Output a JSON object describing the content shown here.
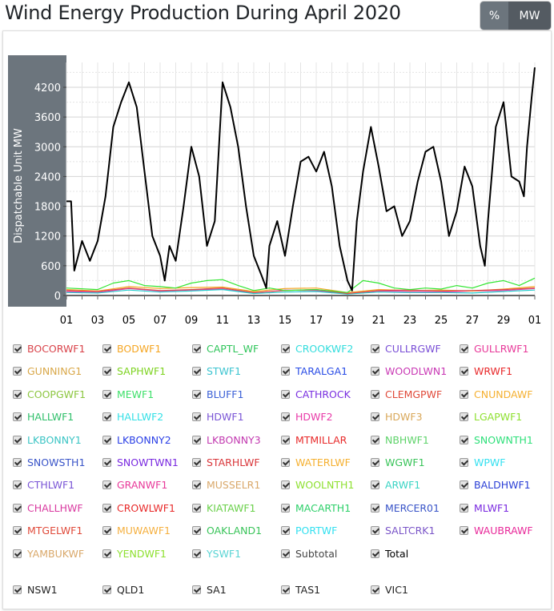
{
  "title": "Wind Energy Production During April 2020",
  "unit_toggle": {
    "options": [
      "%",
      "MW"
    ],
    "selected": "MW"
  },
  "chart_data": {
    "type": "line",
    "ylabel": "Dispatchable Unit MW",
    "xlabel": "",
    "ylim": [
      0,
      4700
    ],
    "yticks": [
      0,
      600,
      1200,
      1800,
      2400,
      3000,
      3600,
      4200
    ],
    "xticks": [
      "01",
      "03",
      "05",
      "07",
      "09",
      "11",
      "13",
      "15",
      "17",
      "19",
      "21",
      "23",
      "25",
      "27",
      "29",
      "01"
    ],
    "xlim_days": [
      1,
      31
    ],
    "grid": true,
    "series": [
      {
        "name": "Total",
        "color": "#000000",
        "x": [
          1,
          1.3,
          1.5,
          2,
          2.5,
          3,
          3.5,
          4,
          4.5,
          5,
          5.5,
          6,
          6.5,
          7,
          7.3,
          7.6,
          8,
          8.5,
          9,
          9.5,
          10,
          10.5,
          11,
          11.5,
          12,
          12.5,
          13,
          13.5,
          13.8,
          14,
          14.5,
          15,
          15.5,
          16,
          16.5,
          17,
          17.5,
          18,
          18.5,
          19,
          19.3,
          19.6,
          20,
          20.5,
          21,
          21.5,
          22,
          22.5,
          23,
          23.5,
          24,
          24.5,
          25,
          25.5,
          26,
          26.5,
          27,
          27.5,
          27.8,
          28,
          28.5,
          29,
          29.5,
          30,
          30.3,
          30.5,
          30.8,
          31
        ],
        "y": [
          1900,
          1900,
          500,
          1100,
          700,
          1100,
          2000,
          3400,
          3900,
          4300,
          3800,
          2500,
          1200,
          800,
          300,
          1000,
          700,
          1800,
          3000,
          2400,
          1000,
          1500,
          4300,
          3800,
          3000,
          1800,
          800,
          400,
          150,
          1000,
          1500,
          800,
          1800,
          2700,
          2800,
          2500,
          2900,
          2200,
          1000,
          300,
          100,
          1500,
          2500,
          3400,
          2600,
          1700,
          1800,
          1200,
          1500,
          2300,
          2900,
          3000,
          2300,
          1200,
          1700,
          2600,
          2200,
          1000,
          600,
          1500,
          3400,
          3900,
          2400,
          2300,
          2000,
          3000,
          4000,
          4600
        ]
      },
      {
        "name": "SAPHWF1",
        "color": "#33e633",
        "x": [
          1,
          3,
          4,
          5,
          6,
          7,
          8,
          9,
          10,
          11,
          12,
          13,
          14,
          15,
          17,
          19,
          20,
          21,
          22,
          23,
          24,
          25,
          26,
          27,
          28,
          29,
          30,
          31
        ],
        "y": [
          150,
          120,
          250,
          300,
          200,
          180,
          150,
          250,
          300,
          320,
          200,
          100,
          150,
          100,
          120,
          60,
          300,
          250,
          150,
          120,
          150,
          130,
          200,
          150,
          250,
          300,
          200,
          350
        ]
      },
      {
        "name": "BOCORWF1",
        "color": "#d94a4a",
        "x": [
          1,
          3,
          5,
          7,
          9,
          11,
          13,
          15,
          17,
          19,
          21,
          23,
          25,
          27,
          29,
          31
        ],
        "y": [
          100,
          80,
          150,
          100,
          120,
          150,
          60,
          100,
          120,
          40,
          100,
          110,
          90,
          100,
          120,
          150
        ]
      },
      {
        "name": "BODWF1",
        "color": "#f5a623",
        "x": [
          1,
          3,
          5,
          7,
          9,
          11,
          13,
          15,
          17,
          19,
          21,
          23,
          25,
          27,
          29,
          31
        ],
        "y": [
          120,
          90,
          180,
          140,
          160,
          170,
          80,
          140,
          150,
          60,
          120,
          100,
          110,
          90,
          130,
          180
        ]
      },
      {
        "name": "CROOKWF2",
        "color": "#22cccc",
        "x": [
          1,
          3,
          5,
          7,
          9,
          11,
          13,
          15,
          17,
          19,
          21,
          23,
          25,
          27,
          29,
          31
        ],
        "y": [
          60,
          50,
          110,
          70,
          90,
          120,
          40,
          70,
          80,
          30,
          70,
          60,
          60,
          50,
          80,
          110
        ]
      },
      {
        "name": "GULLRWF1",
        "color": "#e83ab0",
        "x": [
          1,
          3,
          5,
          7,
          9,
          11,
          13,
          15,
          17,
          19,
          21,
          23,
          25,
          27,
          29,
          31
        ],
        "y": [
          80,
          60,
          140,
          90,
          110,
          130,
          50,
          110,
          100,
          40,
          90,
          80,
          70,
          90,
          100,
          140
        ]
      }
    ]
  },
  "legend": [
    {
      "label": "BOCORWF1",
      "color": "#d9434a"
    },
    {
      "label": "BODWF1",
      "color": "#f5a623"
    },
    {
      "label": "CAPTL_WF",
      "color": "#2fc55a"
    },
    {
      "label": "CROOKWF2",
      "color": "#33dddd"
    },
    {
      "label": "CULLRGWF",
      "color": "#7a4fd6"
    },
    {
      "label": "GULLRWF1",
      "color": "#e83a9a"
    },
    {
      "label": "GUNNING1",
      "color": "#d9a84a"
    },
    {
      "label": "SAPHWF1",
      "color": "#7ed321"
    },
    {
      "label": "STWF1",
      "color": "#3cc4d0"
    },
    {
      "label": "TARALGA1",
      "color": "#2a4de6"
    },
    {
      "label": "WOODLWN1",
      "color": "#c93ab5"
    },
    {
      "label": "WRWF1",
      "color": "#e8282a"
    },
    {
      "label": "COOPGWF1",
      "color": "#8cc63f"
    },
    {
      "label": "MEWF1",
      "color": "#3ee06a"
    },
    {
      "label": "BLUFF1",
      "color": "#3a5fd6"
    },
    {
      "label": "CATHROCK",
      "color": "#7a2fe0"
    },
    {
      "label": "CLEMGPWF",
      "color": "#e04a3a"
    },
    {
      "label": "CNUNDAWF",
      "color": "#f5b030"
    },
    {
      "label": "HALLWF1",
      "color": "#2fbf6a"
    },
    {
      "label": "HALLWF2",
      "color": "#33e0e6"
    },
    {
      "label": "HDWF1",
      "color": "#7a55d6"
    },
    {
      "label": "HDWF2",
      "color": "#e83aa8"
    },
    {
      "label": "HDWF3",
      "color": "#d9a85a"
    },
    {
      "label": "LGAPWF1",
      "color": "#8ee030"
    },
    {
      "label": "LKBONNY1",
      "color": "#3ac4c4"
    },
    {
      "label": "LKBONNY2",
      "color": "#2a3fe6"
    },
    {
      "label": "LKBONNY3",
      "color": "#c23ab0"
    },
    {
      "label": "MTMILLAR",
      "color": "#e82a2a"
    },
    {
      "label": "NBHWF1",
      "color": "#5ed36a"
    },
    {
      "label": "SNOWNTH1",
      "color": "#2ee07a"
    },
    {
      "label": "SNOWSTH1",
      "color": "#3a55c8"
    },
    {
      "label": "SNOWTWN1",
      "color": "#7a2ae0"
    },
    {
      "label": "STARHLWF",
      "color": "#d9363a"
    },
    {
      "label": "WATERLWF",
      "color": "#f5b030"
    },
    {
      "label": "WGWF1",
      "color": "#3ac45a"
    },
    {
      "label": "WPWF",
      "color": "#33e0f0"
    },
    {
      "label": "CTHLWF1",
      "color": "#7a55d6"
    },
    {
      "label": "GRANWF1",
      "color": "#e83a9a"
    },
    {
      "label": "MUSSELR1",
      "color": "#d9a86a"
    },
    {
      "label": "WOOLNTH1",
      "color": "#8ee030"
    },
    {
      "label": "ARWF1",
      "color": "#3ad4c4"
    },
    {
      "label": "BALDHWF1",
      "color": "#2a3fd6"
    },
    {
      "label": "CHALLHWF",
      "color": "#d93aa0"
    },
    {
      "label": "CROWLWF1",
      "color": "#e82a2a"
    },
    {
      "label": "KIATAWF1",
      "color": "#6ad04a"
    },
    {
      "label": "MACARTH1",
      "color": "#2ed06a"
    },
    {
      "label": "MERCER01",
      "color": "#3a55c8"
    },
    {
      "label": "MLWF1",
      "color": "#7a2ae0"
    },
    {
      "label": "MTGELWF1",
      "color": "#e04a3a"
    },
    {
      "label": "MUWAWF1",
      "color": "#f5b040"
    },
    {
      "label": "OAKLAND1",
      "color": "#3ac45a"
    },
    {
      "label": "PORTWF",
      "color": "#33e0f0"
    },
    {
      "label": "SALTCRK1",
      "color": "#7a55c8"
    },
    {
      "label": "WAUBRAWF",
      "color": "#e82a9a"
    },
    {
      "label": "YAMBUKWF",
      "color": "#d9a86a"
    },
    {
      "label": "YENDWF1",
      "color": "#8ee030"
    },
    {
      "label": "YSWF1",
      "color": "#5ad4d4"
    },
    {
      "label": "Subtotal",
      "color": "#444444"
    },
    {
      "label": "Total",
      "color": "#000000"
    }
  ],
  "regions": [
    {
      "label": "NSW1",
      "color": "#222222"
    },
    {
      "label": "QLD1",
      "color": "#222222"
    },
    {
      "label": "SA1",
      "color": "#222222"
    },
    {
      "label": "TAS1",
      "color": "#222222"
    },
    {
      "label": "VIC1",
      "color": "#222222"
    }
  ]
}
